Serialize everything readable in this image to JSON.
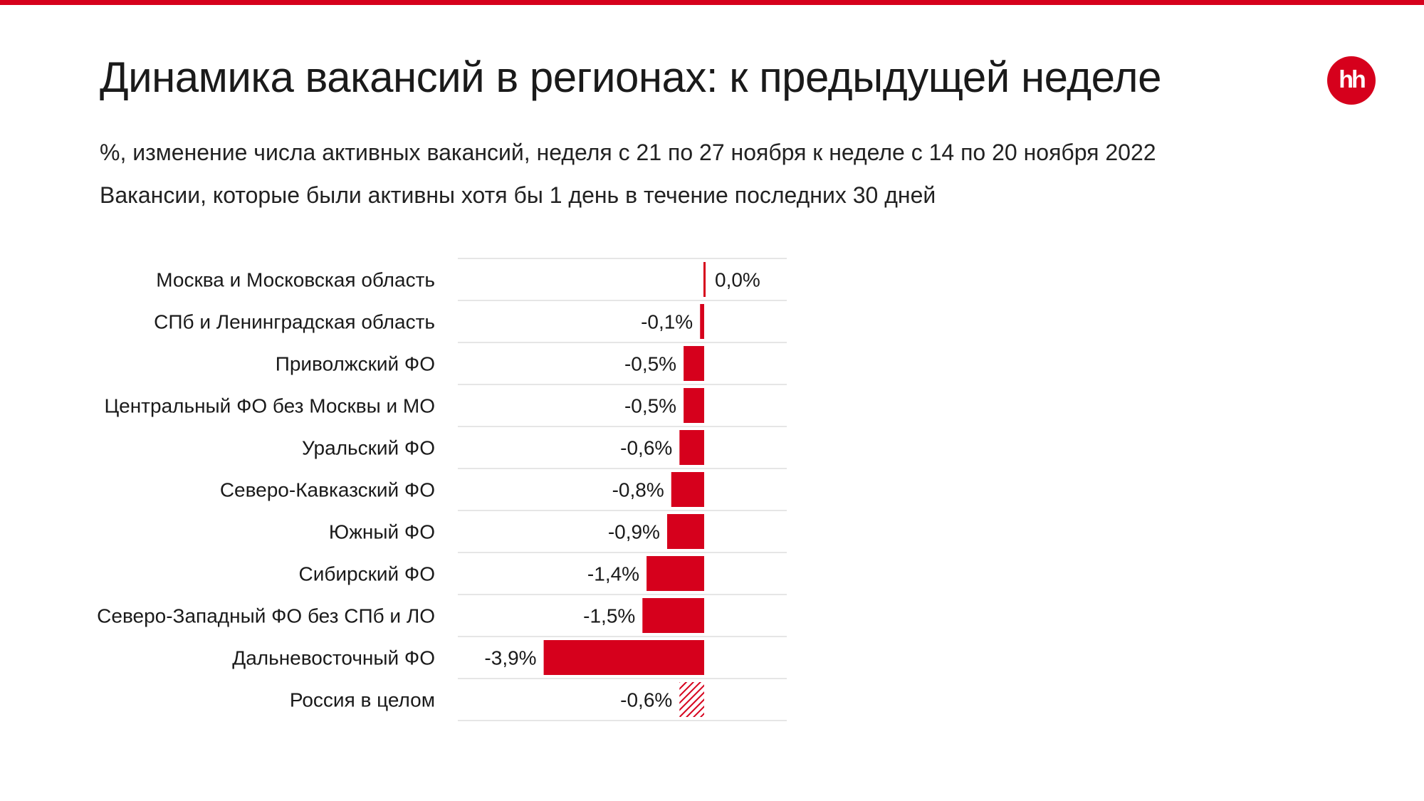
{
  "header": {
    "title": "Динамика вакансий в регионах: к предыдущей неделе",
    "subtitle_1": "%, изменение числа активных вакансий, неделя с 21 по 27 ноября к неделе с 14 по 20 ноября 2022",
    "subtitle_2": "Вакансии, которые были активны хотя бы 1 день в течение последних 30 дней",
    "logo_text": "hh"
  },
  "colors": {
    "accent": "#d6001c",
    "gridline": "#e6e6e6"
  },
  "chart_data": {
    "type": "bar",
    "orientation": "horizontal",
    "categories": [
      "Москва и Московская область",
      "СПб и Ленинградская область",
      "Приволжский ФО",
      "Центральный ФО без Москвы и МО",
      "Уральский ФО",
      "Северо-Кавказский ФО",
      "Южный ФО",
      "Сибирский ФО",
      "Северо-Западный ФО без СПб и ЛО",
      "Дальневосточный ФО",
      "Россия в целом"
    ],
    "values": [
      0.0,
      -0.1,
      -0.5,
      -0.5,
      -0.6,
      -0.8,
      -0.9,
      -1.4,
      -1.5,
      -3.9,
      -0.6
    ],
    "value_labels": [
      "0,0%",
      "-0,1%",
      "-0,5%",
      "-0,5%",
      "-0,6%",
      "-0,8%",
      "-0,9%",
      "-1,4%",
      "-1,5%",
      "-3,9%",
      "-0,6%"
    ],
    "hatched": [
      false,
      false,
      false,
      false,
      false,
      false,
      false,
      false,
      false,
      false,
      true
    ],
    "xlim": [
      -3.9,
      0
    ],
    "grid": false,
    "legend": "none"
  }
}
